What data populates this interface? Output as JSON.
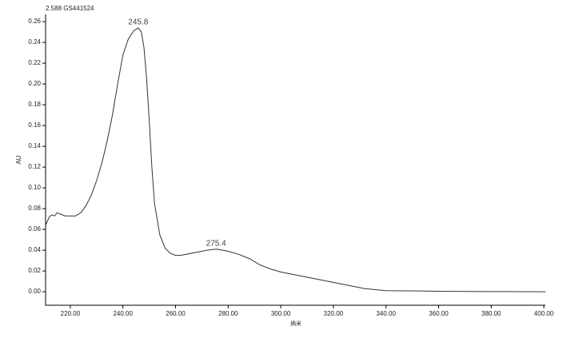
{
  "chart_data": {
    "type": "line",
    "title": "2.588 GS441524",
    "x_label": "纳米",
    "y_label": "AU",
    "x": [
      210.6,
      212,
      213,
      214,
      215,
      216,
      218,
      220,
      222,
      224,
      226,
      228,
      230,
      232,
      234,
      236,
      238,
      240,
      242,
      244,
      245.8,
      247,
      248,
      249,
      250,
      251,
      252,
      254,
      256,
      258,
      260,
      262,
      264,
      266,
      268,
      270,
      272,
      275.4,
      278,
      280,
      284,
      288,
      292,
      296,
      300,
      304,
      308,
      312,
      316,
      320,
      324,
      328,
      332,
      336,
      340,
      350,
      360,
      370,
      380,
      390,
      400.6
    ],
    "series": [
      {
        "color": "#333333",
        "values": [
          0.064,
          0.072,
          0.074,
          0.073,
          0.076,
          0.075,
          0.073,
          0.073,
          0.073,
          0.076,
          0.083,
          0.093,
          0.107,
          0.124,
          0.145,
          0.17,
          0.2,
          0.228,
          0.243,
          0.251,
          0.254,
          0.25,
          0.235,
          0.205,
          0.165,
          0.12,
          0.085,
          0.055,
          0.042,
          0.037,
          0.035,
          0.035,
          0.036,
          0.037,
          0.038,
          0.039,
          0.04,
          0.041,
          0.04,
          0.039,
          0.036,
          0.032,
          0.026,
          0.022,
          0.019,
          0.017,
          0.015,
          0.013,
          0.011,
          0.009,
          0.007,
          0.005,
          0.003,
          0.002,
          0.001,
          0.0008,
          0.0005,
          0.0003,
          0.0002,
          0.0001,
          0
        ]
      }
    ],
    "annotations": [
      {
        "text": "245.8",
        "x": 245.8,
        "y": 0.254
      },
      {
        "text": "275.4",
        "x": 275.4,
        "y": 0.041
      }
    ],
    "xlim": [
      210.6,
      400.6
    ],
    "ylim": [
      -0.013,
      0.267
    ],
    "xticks": [
      {
        "value": 220,
        "label": "220.00"
      },
      {
        "value": 240,
        "label": "240.00"
      },
      {
        "value": 260,
        "label": "260.00"
      },
      {
        "value": 280,
        "label": "280.00"
      },
      {
        "value": 300,
        "label": "300.00"
      },
      {
        "value": 320,
        "label": "320.00"
      },
      {
        "value": 340,
        "label": "340.00"
      },
      {
        "value": 360,
        "label": "360.00"
      },
      {
        "value": 380,
        "label": "380.00"
      },
      {
        "value": 400,
        "label": "400.00"
      }
    ],
    "yticks": [
      {
        "value": 0,
        "label": "0.00"
      },
      {
        "value": 0.02,
        "label": "0.02"
      },
      {
        "value": 0.04,
        "label": "0.04"
      },
      {
        "value": 0.06,
        "label": "0.06"
      },
      {
        "value": 0.08,
        "label": "0.08"
      },
      {
        "value": 0.1,
        "label": "0.10"
      },
      {
        "value": 0.12,
        "label": "0.12"
      },
      {
        "value": 0.14,
        "label": "0.14"
      },
      {
        "value": 0.16,
        "label": "0.16"
      },
      {
        "value": 0.18,
        "label": "0.18"
      },
      {
        "value": 0.2,
        "label": "0.20"
      },
      {
        "value": 0.22,
        "label": "0.22"
      },
      {
        "value": 0.24,
        "label": "0.24"
      },
      {
        "value": 0.26,
        "label": "0.26"
      }
    ]
  }
}
